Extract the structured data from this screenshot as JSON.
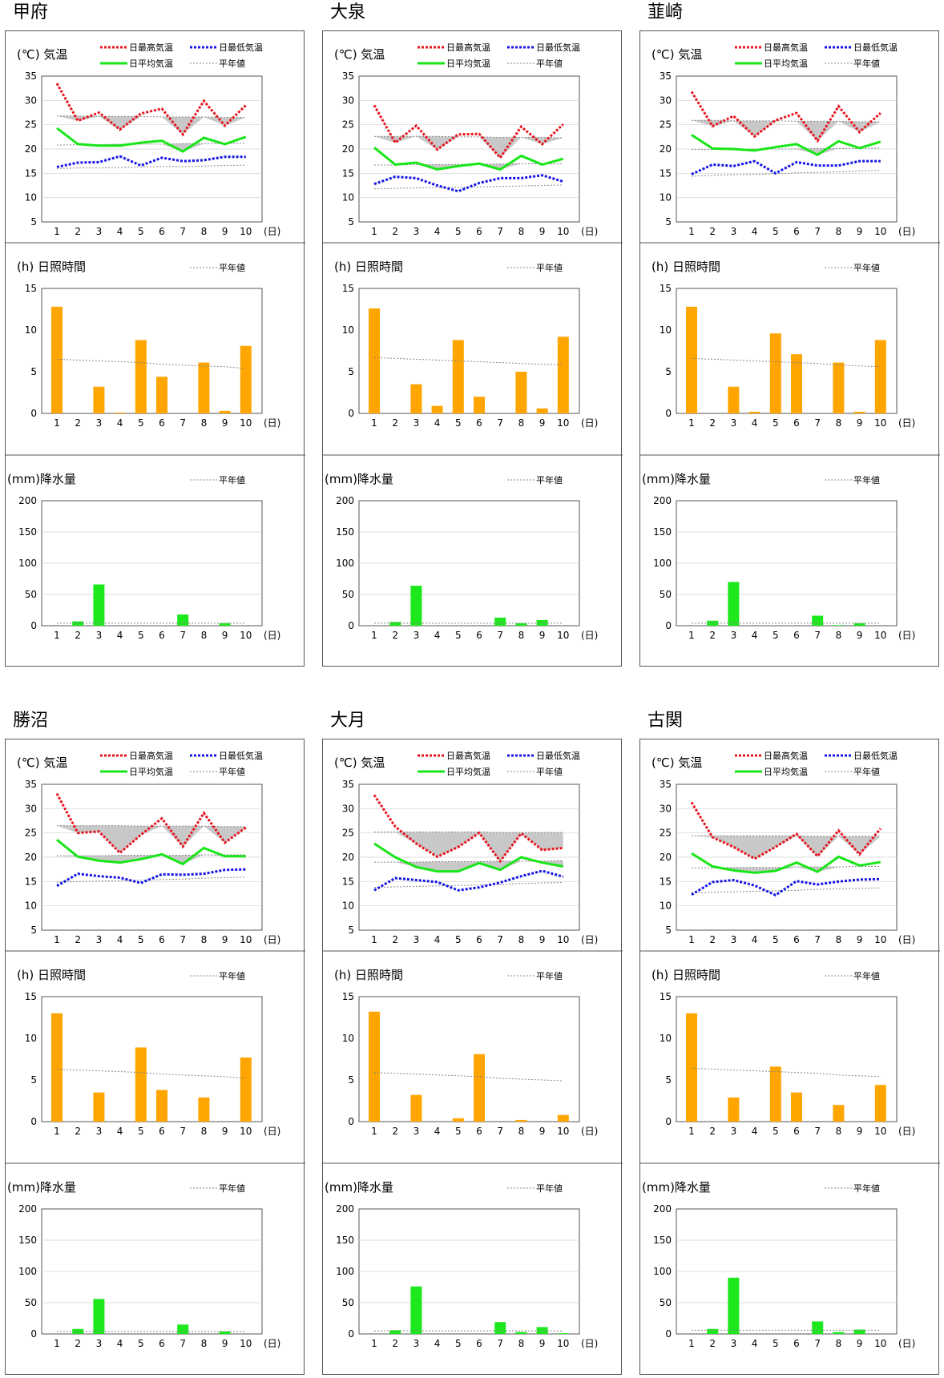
{
  "labels": {
    "temp_title": "(℃) 気温",
    "sun_title": "(h) 日照時間",
    "rain_title": "(mm)降水量",
    "legend_max": "日最高気温",
    "legend_min": "日最低気温",
    "legend_avg": "日平均気温",
    "legend_normal": "平年値",
    "x_unit": "(日)",
    "x_ticks": [
      "1",
      "2",
      "3",
      "4",
      "5",
      "6",
      "7",
      "8",
      "9",
      "10"
    ],
    "temp_ticks": [
      "35",
      "30",
      "25",
      "20",
      "15",
      "10",
      "5"
    ],
    "sun_ticks": [
      "15",
      "10",
      "5",
      "0"
    ],
    "rain_ticks": [
      "200",
      "150",
      "100",
      "50",
      "0"
    ]
  },
  "colors": {
    "max": "#e8141e",
    "min": "#1414e6",
    "avg": "#19e619",
    "sun_bar": "#ffa500",
    "rain_bar": "#1de81d",
    "normal_line": "#888888",
    "shade": "#c8c8c8",
    "grid": "#d0d0d0"
  },
  "chart_data": [
    {
      "type": "line",
      "station": "甲府",
      "title": "気温",
      "ylabel": "℃",
      "xlabel": "日",
      "x": [
        1,
        2,
        3,
        4,
        5,
        6,
        7,
        8,
        9,
        10
      ],
      "ylim": [
        5,
        35
      ],
      "series": [
        {
          "name": "日最高気温",
          "values": [
            33.5,
            25.8,
            27.5,
            24.0,
            27.3,
            28.3,
            23.0,
            29.9,
            24.8,
            29.0
          ]
        },
        {
          "name": "日最低気温",
          "values": [
            16.3,
            17.2,
            17.3,
            18.5,
            16.6,
            18.2,
            17.5,
            17.7,
            18.4,
            18.4
          ]
        },
        {
          "name": "日平均気温",
          "values": [
            24.3,
            21.0,
            20.7,
            20.7,
            21.3,
            21.7,
            19.5,
            22.3,
            21.0,
            22.5
          ]
        },
        {
          "name": "平年値",
          "values": [
            26.8,
            26.8,
            26.7,
            26.7,
            26.7,
            26.6,
            26.6,
            26.6,
            26.5,
            26.5
          ]
        },
        {
          "name": "平年値",
          "values": [
            16.0,
            16.1,
            16.1,
            16.2,
            16.3,
            16.4,
            16.4,
            16.5,
            16.6,
            16.7
          ]
        },
        {
          "name": "平年値",
          "values": [
            20.8,
            20.9,
            20.9,
            21.0,
            21.0,
            21.0,
            21.1,
            21.1,
            21.2,
            21.2
          ]
        }
      ]
    },
    {
      "type": "bar",
      "station": "甲府",
      "title": "日照時間",
      "ylabel": "h",
      "xlabel": "日",
      "categories": [
        1,
        2,
        3,
        4,
        5,
        6,
        7,
        8,
        9,
        10
      ],
      "ylim": [
        0,
        15
      ],
      "values": [
        12.8,
        0,
        3.2,
        0.1,
        8.8,
        4.4,
        0,
        6.1,
        0.3,
        8.1
      ],
      "normal": [
        6.5,
        6.4,
        6.3,
        6.2,
        6.1,
        5.9,
        5.8,
        5.7,
        5.6,
        5.4
      ]
    },
    {
      "type": "bar",
      "station": "甲府",
      "title": "降水量",
      "ylabel": "mm",
      "xlabel": "日",
      "categories": [
        1,
        2,
        3,
        4,
        5,
        6,
        7,
        8,
        9,
        10
      ],
      "ylim": [
        0,
        200
      ],
      "values": [
        0,
        7,
        66,
        0,
        0,
        0,
        18,
        0,
        4,
        0
      ],
      "normal": [
        4,
        4,
        4,
        4,
        4,
        4,
        4,
        4,
        4,
        4
      ]
    },
    {
      "type": "line",
      "station": "大泉",
      "title": "気温",
      "ylabel": "℃",
      "xlabel": "日",
      "x": [
        1,
        2,
        3,
        4,
        5,
        6,
        7,
        8,
        9,
        10
      ],
      "ylim": [
        5,
        35
      ],
      "series": [
        {
          "name": "日最高気温",
          "values": [
            29.0,
            21.3,
            24.8,
            19.9,
            23.0,
            23.1,
            18.2,
            24.6,
            21.0,
            25.1
          ]
        },
        {
          "name": "日最低気温",
          "values": [
            12.8,
            14.3,
            14.0,
            12.5,
            11.3,
            13.0,
            14.0,
            14.0,
            14.6,
            13.3
          ]
        },
        {
          "name": "日平均気温",
          "values": [
            20.3,
            16.8,
            17.2,
            15.8,
            16.5,
            17.0,
            15.8,
            18.6,
            16.8,
            18.0
          ]
        },
        {
          "name": "平年値",
          "values": [
            22.6,
            22.6,
            22.6,
            22.6,
            22.5,
            22.5,
            22.4,
            22.4,
            22.4,
            22.3
          ]
        },
        {
          "name": "平年値",
          "values": [
            11.8,
            11.9,
            12.0,
            12.1,
            12.1,
            12.2,
            12.3,
            12.4,
            12.5,
            12.6
          ]
        },
        {
          "name": "平年値",
          "values": [
            16.7,
            16.7,
            16.8,
            16.8,
            16.8,
            16.9,
            16.9,
            17.0,
            17.0,
            17.0
          ]
        }
      ]
    },
    {
      "type": "bar",
      "station": "大泉",
      "title": "日照時間",
      "ylabel": "h",
      "xlabel": "日",
      "categories": [
        1,
        2,
        3,
        4,
        5,
        6,
        7,
        8,
        9,
        10
      ],
      "ylim": [
        0,
        15
      ],
      "values": [
        12.6,
        0,
        3.5,
        0.9,
        8.8,
        2.0,
        0,
        5.0,
        0.6,
        9.2
      ],
      "normal": [
        6.7,
        6.6,
        6.5,
        6.4,
        6.3,
        6.2,
        6.1,
        6.0,
        5.9,
        5.8
      ]
    },
    {
      "type": "bar",
      "station": "大泉",
      "title": "降水量",
      "ylabel": "mm",
      "xlabel": "日",
      "categories": [
        1,
        2,
        3,
        4,
        5,
        6,
        7,
        8,
        9,
        10
      ],
      "ylim": [
        0,
        200
      ],
      "values": [
        0,
        6,
        64,
        0,
        0,
        0,
        13,
        4,
        9,
        0
      ],
      "normal": [
        4,
        4,
        4,
        4,
        4,
        4,
        4,
        4,
        4,
        4
      ]
    },
    {
      "type": "line",
      "station": "韮崎",
      "title": "気温",
      "ylabel": "℃",
      "xlabel": "日",
      "x": [
        1,
        2,
        3,
        4,
        5,
        6,
        7,
        8,
        9,
        10
      ],
      "ylim": [
        5,
        35
      ],
      "series": [
        {
          "name": "日最高気温",
          "values": [
            31.8,
            24.7,
            26.8,
            22.6,
            25.9,
            27.4,
            21.7,
            28.8,
            23.5,
            27.4
          ]
        },
        {
          "name": "日最低気温",
          "values": [
            14.8,
            16.8,
            16.5,
            17.5,
            15.0,
            17.3,
            16.6,
            16.6,
            17.5,
            17.5
          ]
        },
        {
          "name": "日平均気温",
          "values": [
            22.9,
            20.1,
            20.0,
            19.7,
            20.4,
            21.0,
            18.8,
            21.6,
            20.2,
            21.5
          ]
        },
        {
          "name": "平年値",
          "values": [
            25.9,
            25.9,
            25.8,
            25.8,
            25.8,
            25.7,
            25.7,
            25.7,
            25.6,
            25.6
          ]
        },
        {
          "name": "平年値",
          "values": [
            14.4,
            14.6,
            14.7,
            14.8,
            14.9,
            15.1,
            15.2,
            15.3,
            15.5,
            15.6
          ]
        },
        {
          "name": "平年値",
          "values": [
            19.9,
            19.9,
            19.9,
            20.0,
            20.0,
            20.0,
            20.1,
            20.1,
            20.1,
            20.2
          ]
        }
      ]
    },
    {
      "type": "bar",
      "station": "韮崎",
      "title": "日照時間",
      "ylabel": "h",
      "xlabel": "日",
      "categories": [
        1,
        2,
        3,
        4,
        5,
        6,
        7,
        8,
        9,
        10
      ],
      "ylim": [
        0,
        15
      ],
      "values": [
        12.8,
        0,
        3.2,
        0.2,
        9.6,
        7.1,
        0,
        6.1,
        0.2,
        8.8
      ],
      "normal": [
        6.6,
        6.5,
        6.4,
        6.3,
        6.2,
        6.1,
        6.0,
        5.8,
        5.7,
        5.6
      ]
    },
    {
      "type": "bar",
      "station": "韮崎",
      "title": "降水量",
      "ylabel": "mm",
      "xlabel": "日",
      "categories": [
        1,
        2,
        3,
        4,
        5,
        6,
        7,
        8,
        9,
        10
      ],
      "ylim": [
        0,
        200
      ],
      "values": [
        0,
        8,
        70,
        0,
        0,
        0,
        16,
        1,
        4,
        0
      ],
      "normal": [
        4,
        4,
        4,
        4,
        4,
        4,
        4,
        4,
        4,
        4
      ]
    },
    {
      "type": "line",
      "station": "勝沼",
      "title": "気温",
      "ylabel": "℃",
      "xlabel": "日",
      "x": [
        1,
        2,
        3,
        4,
        5,
        6,
        7,
        8,
        9,
        10
      ],
      "ylim": [
        5,
        35
      ],
      "series": [
        {
          "name": "日最高気温",
          "values": [
            33.1,
            25.0,
            25.3,
            20.9,
            24.6,
            28.0,
            22.2,
            29.1,
            23.0,
            26.1
          ]
        },
        {
          "name": "日最低気温",
          "values": [
            14.1,
            16.6,
            16.1,
            15.8,
            14.7,
            16.5,
            16.4,
            16.6,
            17.4,
            17.5
          ]
        },
        {
          "name": "日平均気温",
          "values": [
            23.6,
            20.1,
            19.3,
            18.9,
            19.6,
            20.6,
            18.6,
            21.9,
            20.2,
            20.2
          ]
        },
        {
          "name": "平年値",
          "values": [
            26.5,
            26.5,
            26.5,
            26.5,
            26.4,
            26.4,
            26.4,
            26.4,
            26.3,
            26.3
          ]
        },
        {
          "name": "平年値",
          "values": [
            14.9,
            15.0,
            15.1,
            15.2,
            15.3,
            15.4,
            15.5,
            15.7,
            15.8,
            15.9
          ]
        },
        {
          "name": "平年値",
          "values": [
            20.3,
            20.3,
            20.3,
            20.4,
            20.4,
            20.4,
            20.4,
            20.5,
            20.5,
            20.5
          ]
        }
      ]
    },
    {
      "type": "bar",
      "station": "勝沼",
      "title": "日照時間",
      "ylabel": "h",
      "xlabel": "日",
      "categories": [
        1,
        2,
        3,
        4,
        5,
        6,
        7,
        8,
        9,
        10
      ],
      "ylim": [
        0,
        15
      ],
      "values": [
        13.0,
        0,
        3.5,
        0,
        8.9,
        3.8,
        0,
        2.9,
        0,
        7.7
      ],
      "normal": [
        6.3,
        6.2,
        6.1,
        6.0,
        5.9,
        5.7,
        5.6,
        5.5,
        5.4,
        5.2
      ]
    },
    {
      "type": "bar",
      "station": "勝沼",
      "title": "降水量",
      "ylabel": "mm",
      "xlabel": "日",
      "categories": [
        1,
        2,
        3,
        4,
        5,
        6,
        7,
        8,
        9,
        10
      ],
      "ylim": [
        0,
        200
      ],
      "values": [
        0,
        8,
        56,
        0,
        0,
        0,
        15,
        0,
        4,
        0
      ],
      "normal": [
        4,
        4,
        4,
        4,
        4,
        4,
        4,
        4,
        4,
        4
      ]
    },
    {
      "type": "line",
      "station": "大月",
      "title": "気温",
      "ylabel": "℃",
      "xlabel": "日",
      "x": [
        1,
        2,
        3,
        4,
        5,
        6,
        7,
        8,
        9,
        10
      ],
      "ylim": [
        5,
        35
      ],
      "series": [
        {
          "name": "日最高気温",
          "values": [
            32.8,
            26.3,
            22.8,
            20.1,
            22.1,
            25.0,
            19.2,
            24.9,
            21.5,
            21.9
          ]
        },
        {
          "name": "日最低気温",
          "values": [
            13.2,
            15.7,
            15.3,
            14.9,
            13.2,
            13.8,
            14.8,
            16.1,
            17.2,
            16.0
          ]
        },
        {
          "name": "日平均気温",
          "values": [
            22.8,
            20.0,
            18.0,
            17.1,
            17.1,
            18.8,
            17.4,
            20.0,
            18.9,
            18.1
          ]
        },
        {
          "name": "平年値",
          "values": [
            25.2,
            25.2,
            25.2,
            25.2,
            25.2,
            25.2,
            25.1,
            25.1,
            25.1,
            25.1
          ]
        },
        {
          "name": "平年値",
          "values": [
            13.8,
            13.9,
            14.0,
            14.1,
            14.2,
            14.3,
            14.4,
            14.6,
            14.7,
            14.8
          ]
        },
        {
          "name": "平年値",
          "values": [
            19.0,
            19.0,
            19.0,
            19.1,
            19.1,
            19.1,
            19.2,
            19.2,
            19.2,
            19.3
          ]
        }
      ]
    },
    {
      "type": "bar",
      "station": "大月",
      "title": "日照時間",
      "ylabel": "h",
      "xlabel": "日",
      "categories": [
        1,
        2,
        3,
        4,
        5,
        6,
        7,
        8,
        9,
        10
      ],
      "ylim": [
        0,
        15
      ],
      "values": [
        13.2,
        0,
        3.2,
        0,
        0.4,
        8.1,
        0,
        0.2,
        0,
        0.8
      ],
      "normal": [
        5.9,
        5.8,
        5.7,
        5.6,
        5.5,
        5.4,
        5.2,
        5.1,
        5.0,
        4.9
      ]
    },
    {
      "type": "bar",
      "station": "大月",
      "title": "降水量",
      "ylabel": "mm",
      "xlabel": "日",
      "categories": [
        1,
        2,
        3,
        4,
        5,
        6,
        7,
        8,
        9,
        10
      ],
      "ylim": [
        0,
        200
      ],
      "values": [
        0,
        6,
        76,
        0,
        0,
        0,
        19,
        3,
        11,
        1
      ],
      "normal": [
        5,
        5,
        5,
        5,
        5,
        5,
        5,
        5,
        5,
        5
      ]
    },
    {
      "type": "line",
      "station": "古関",
      "title": "気温",
      "ylabel": "℃",
      "xlabel": "日",
      "x": [
        1,
        2,
        3,
        4,
        5,
        6,
        7,
        8,
        9,
        10
      ],
      "ylim": [
        5,
        35
      ],
      "series": [
        {
          "name": "日最高気温",
          "values": [
            31.3,
            24.1,
            22.1,
            19.7,
            22.1,
            24.8,
            20.2,
            25.5,
            20.6,
            25.9
          ]
        },
        {
          "name": "日最低気温",
          "values": [
            12.3,
            14.9,
            15.3,
            14.2,
            12.2,
            15.1,
            14.4,
            15.0,
            15.4,
            15.5
          ]
        },
        {
          "name": "日平均気温",
          "values": [
            20.8,
            18.1,
            17.3,
            16.8,
            17.2,
            18.9,
            17.0,
            20.1,
            18.3,
            19.0
          ]
        },
        {
          "name": "平年値",
          "values": [
            24.4,
            24.4,
            24.4,
            24.4,
            24.4,
            24.4,
            24.3,
            24.3,
            24.3,
            24.3
          ]
        },
        {
          "name": "平年値",
          "values": [
            12.7,
            12.8,
            12.9,
            13.0,
            13.1,
            13.2,
            13.4,
            13.5,
            13.6,
            13.7
          ]
        },
        {
          "name": "平年値",
          "values": [
            17.8,
            17.8,
            17.9,
            17.9,
            17.9,
            18.0,
            18.0,
            18.0,
            18.1,
            18.1
          ]
        }
      ]
    },
    {
      "type": "bar",
      "station": "古関",
      "title": "日照時間",
      "ylabel": "h",
      "xlabel": "日",
      "categories": [
        1,
        2,
        3,
        4,
        5,
        6,
        7,
        8,
        9,
        10
      ],
      "ylim": [
        0,
        15
      ],
      "values": [
        13.0,
        0,
        2.9,
        0,
        6.6,
        3.5,
        0,
        2.0,
        0,
        4.4
      ],
      "normal": [
        6.4,
        6.3,
        6.2,
        6.1,
        6.0,
        5.9,
        5.8,
        5.6,
        5.5,
        5.4
      ]
    },
    {
      "type": "bar",
      "station": "古関",
      "title": "降水量",
      "ylabel": "mm",
      "xlabel": "日",
      "categories": [
        1,
        2,
        3,
        4,
        5,
        6,
        7,
        8,
        9,
        10
      ],
      "ylim": [
        0,
        200
      ],
      "values": [
        0,
        8,
        90,
        0,
        0,
        0,
        20,
        3,
        7,
        0
      ],
      "normal": [
        6,
        6,
        6,
        6,
        6,
        6,
        6,
        6,
        6,
        6
      ]
    }
  ]
}
